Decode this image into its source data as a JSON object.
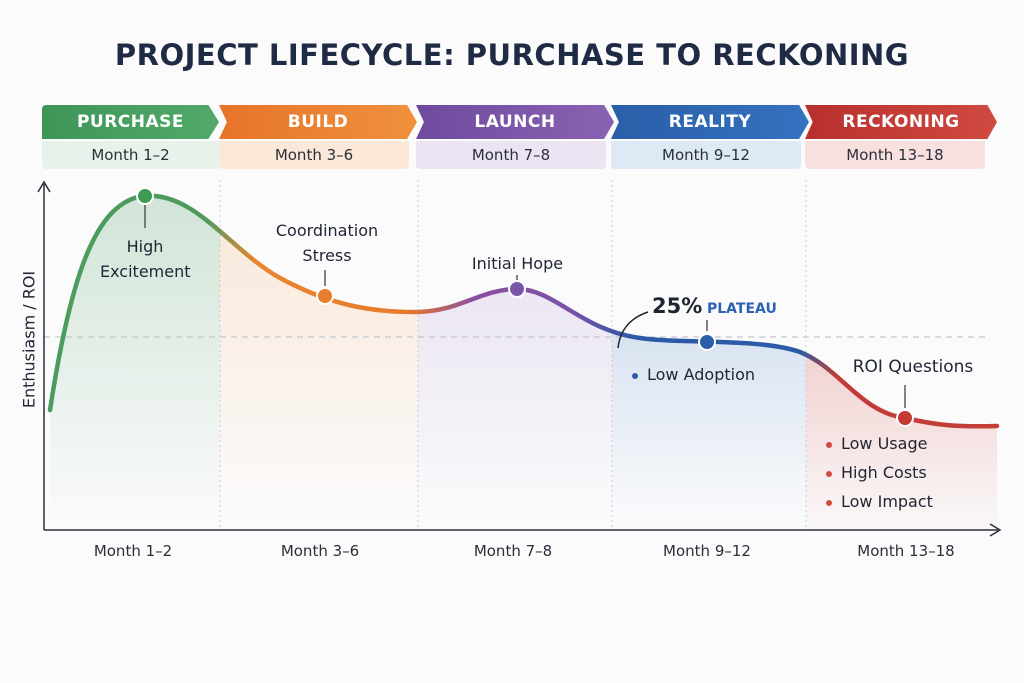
{
  "title": "PROJECT LIFECYCLE: PURCHASE TO RECKONING",
  "phases": [
    {
      "name": "PURCHASE",
      "period": "Month 1–2",
      "color": "#3f9a5a",
      "tint": "#e7f2ea"
    },
    {
      "name": "BUILD",
      "period": "Month 3–6",
      "color": "#e8792a",
      "tint": "#fbe9db"
    },
    {
      "name": "LAUNCH",
      "period": "Month 7–8",
      "color": "#7b52a6",
      "tint": "#ece4f3"
    },
    {
      "name": "REALITY",
      "period": "Month 9–12",
      "color": "#2c64b0",
      "tint": "#deeaf6"
    },
    {
      "name": "RECKONING",
      "period": "Month 13–18",
      "color": "#c23a35",
      "tint": "#f8e1e0"
    }
  ],
  "chart_data": {
    "type": "line",
    "ylabel": "Enthusiasm / ROI",
    "xlabel": "",
    "categories": [
      "Month 1–2",
      "Month 3–6",
      "Month 7–8",
      "Month 9–12",
      "Month 13–18"
    ],
    "grid": "vertical dotted phase dividers, horizontal dashed reference line",
    "annotations": [
      {
        "phase": "Month 1–2",
        "label": "High Excitement"
      },
      {
        "phase": "Month 3–6",
        "label": "Coordination Stress"
      },
      {
        "phase": "Month 7–8",
        "label": "Initial Hope"
      },
      {
        "phase": "Month 9–12",
        "label_value": "25%",
        "label": "PLATEAU",
        "bullets": [
          "Low Adoption"
        ]
      },
      {
        "phase": "Month 13–18",
        "label": "ROI Questions",
        "bullets": [
          "Low Usage",
          "High Costs",
          "Low Impact"
        ]
      }
    ]
  }
}
